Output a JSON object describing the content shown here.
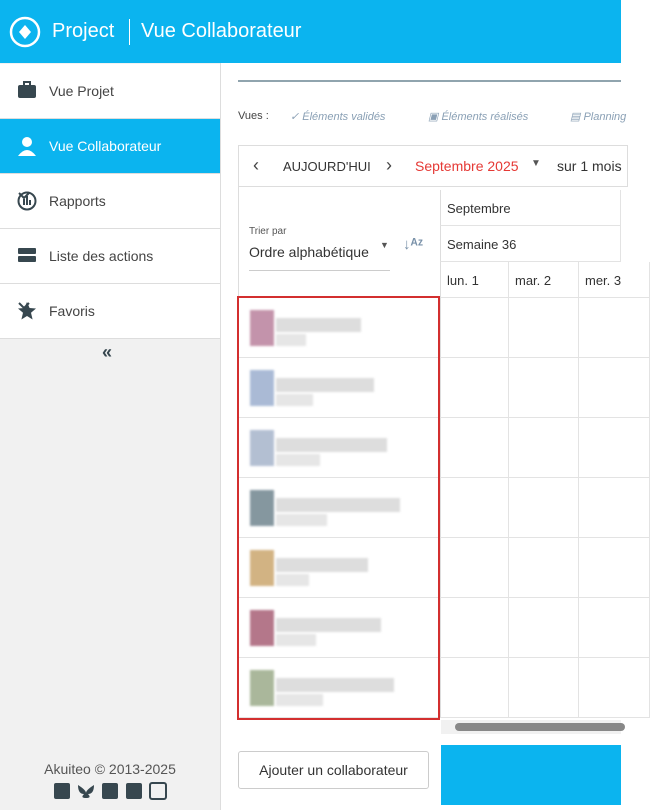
{
  "header": {
    "app": "Project",
    "view": "Vue Collaborateur"
  },
  "sidebar": {
    "items": [
      "Vue Projet",
      "Vue Collaborateur",
      "Rapports",
      "Liste des actions",
      "Favoris"
    ],
    "collapse": "«",
    "footer": "Akuiteo © 2013-2025"
  },
  "toolbar": {
    "views_label": "Vues :",
    "views": [
      "Éléments validés",
      "Éléments réalisés",
      "Planning"
    ]
  },
  "nav": {
    "today": "AUJOURD'HUI",
    "month": "Septembre 2025",
    "range": "sur 1 mois"
  },
  "sort": {
    "label": "Trier par",
    "value": "Ordre alphabétique"
  },
  "calendar": {
    "month": "Septembre",
    "week": "Semaine 36",
    "days": [
      "lun. 1",
      "mar. 2",
      "mer. 3"
    ]
  },
  "add_button": "Ajouter un collaborateur"
}
